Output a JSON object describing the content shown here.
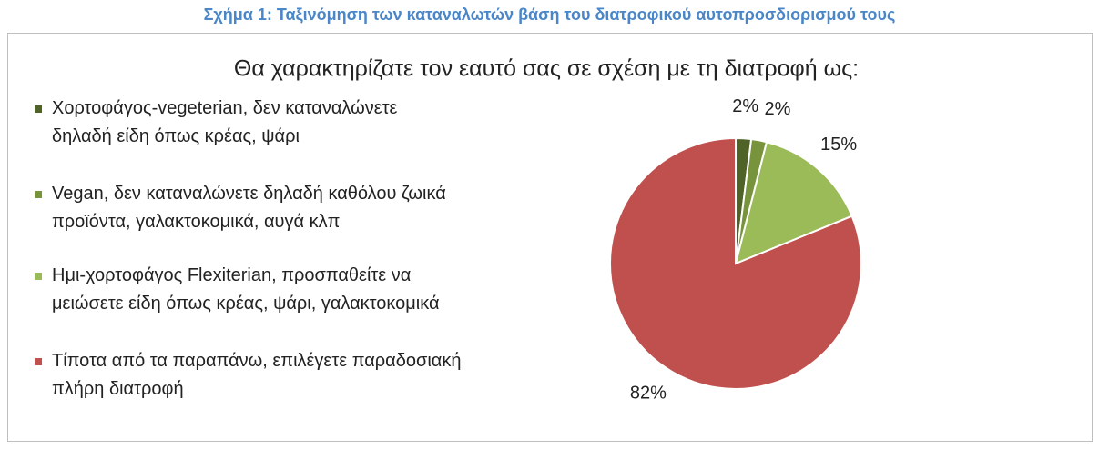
{
  "caption": "Σχήμα 1: Ταξινόμηση των καταναλωτών βάση του διατροφικού αυτοπροσδιορισμού τους",
  "chart_data": {
    "type": "pie",
    "title": "Θα χαρακτηρίζατε τον εαυτό σας σε σχέση με τη διατροφή ως:",
    "categories": [
      "Χορτοφάγος-vegeterian, δεν καταναλώνετε δηλαδή είδη όπως κρέας, ψάρι",
      "Vegan, δεν καταναλώνετε δηλαδή καθόλου ζωικά προϊόντα, γαλακτοκομικά, αυγά κλπ",
      "Ημι-χορτοφάγος Flexiterian, προσπαθείτε να μειώσετε είδη όπως κρέας, ψάρι, γαλακτοκομικά",
      "Τίποτα από τα παραπάνω, επιλέγετε παραδοσιακή πλήρη διατροφή"
    ],
    "values": [
      2,
      2,
      15,
      82
    ],
    "value_labels": [
      "2%",
      "2%",
      "15%",
      "82%"
    ],
    "colors": [
      "#4f6228",
      "#77933c",
      "#9bbb59",
      "#c0504d"
    ],
    "legend": "left"
  }
}
